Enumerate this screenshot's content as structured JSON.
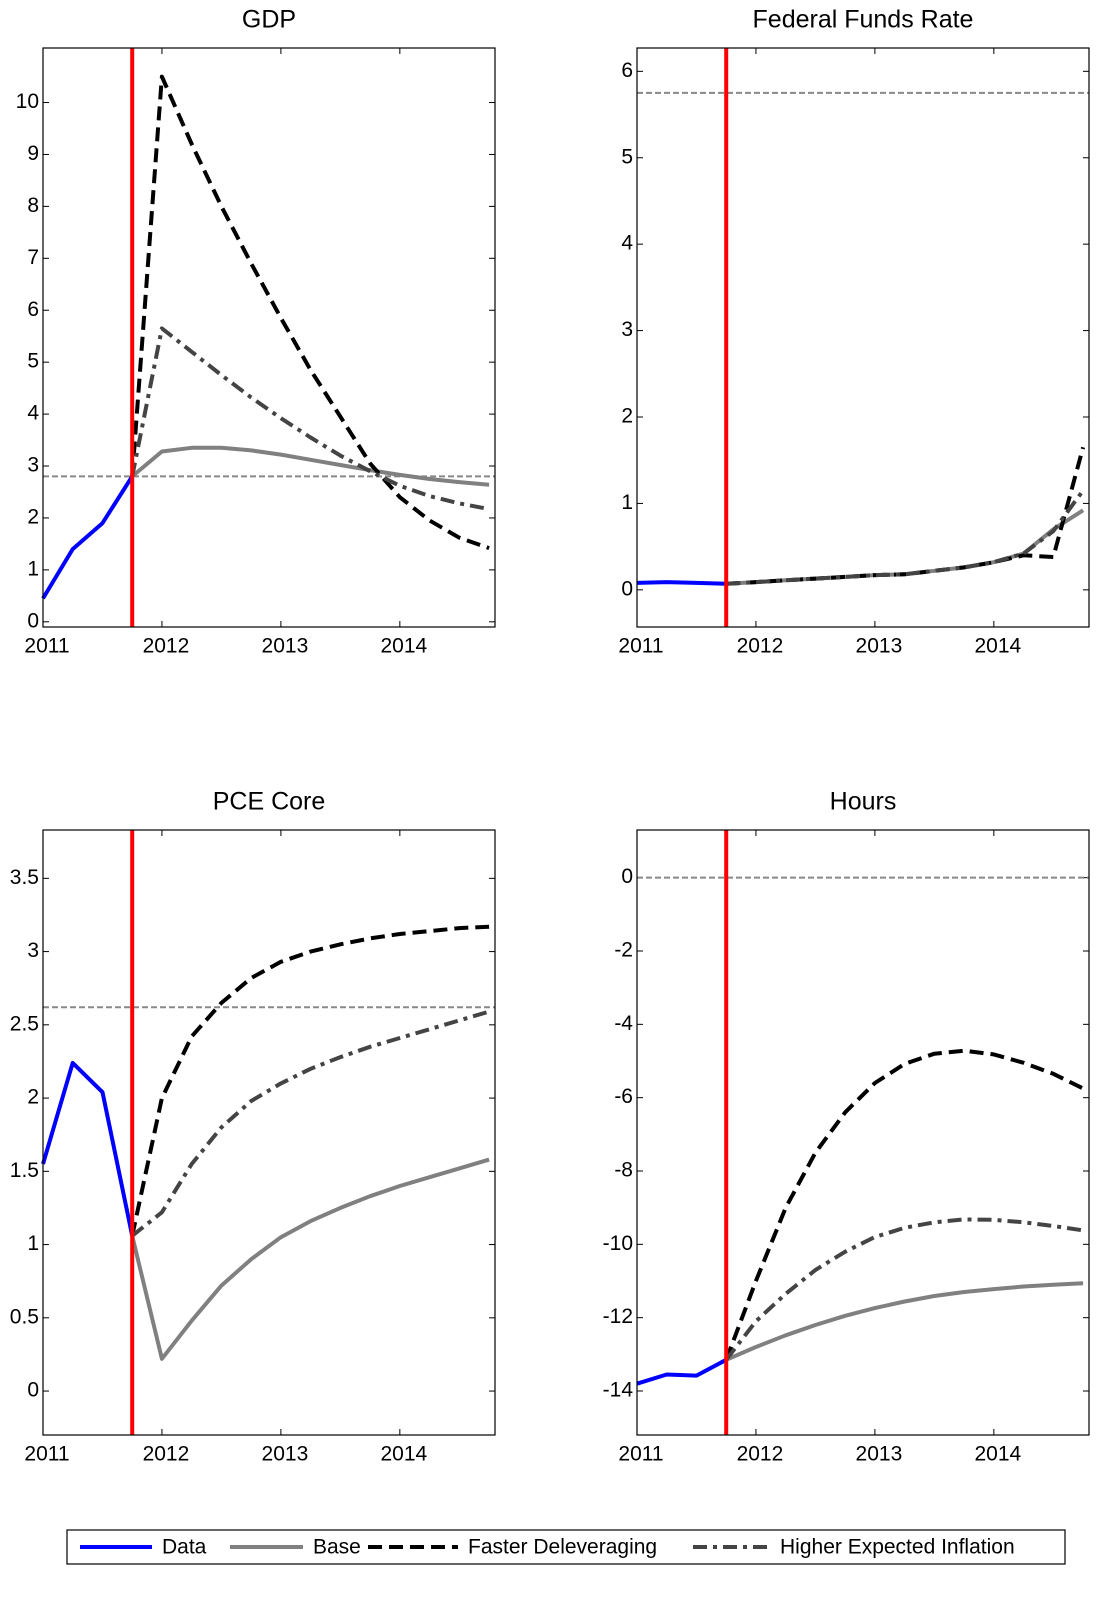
{
  "chart_data": [
    {
      "type": "line",
      "title": "GDP",
      "x": [
        2011,
        2011.25,
        2011.5,
        2011.75,
        2012,
        2012.25,
        2012.5,
        2012.75,
        2013,
        2013.25,
        2013.5,
        2013.75,
        2014,
        2014.25,
        2014.5,
        2014.75
      ],
      "xlim": [
        2011,
        2014.8
      ],
      "xticks": [
        2011,
        2012,
        2013,
        2014
      ],
      "ylim": [
        -0.1,
        11.05
      ],
      "yticks": [
        0,
        1,
        2,
        3,
        4,
        5,
        6,
        7,
        8,
        9,
        10
      ],
      "reference_line": 2.8,
      "event_line": 2011.75,
      "event_color": "#ff0000",
      "series": [
        {
          "name": "Data",
          "color": "#0000ff",
          "dash": "solid",
          "values": [
            0.45,
            1.4,
            1.9,
            2.8,
            null,
            null,
            null,
            null,
            null,
            null,
            null,
            null,
            null,
            null,
            null,
            null
          ]
        },
        {
          "name": "Base",
          "color": "#808080",
          "dash": "solid",
          "values": [
            null,
            null,
            null,
            2.8,
            3.28,
            3.35,
            3.35,
            3.3,
            3.22,
            3.12,
            3.02,
            2.92,
            2.83,
            2.75,
            2.69,
            2.64
          ]
        },
        {
          "name": "Faster Deleveraging",
          "color": "#000000",
          "dash": "dashed",
          "values": [
            null,
            null,
            null,
            2.8,
            10.5,
            9.2,
            8.0,
            6.9,
            5.85,
            4.85,
            3.95,
            3.05,
            2.4,
            1.95,
            1.62,
            1.42
          ]
        },
        {
          "name": "Higher Expected Inflation",
          "color": "#444444",
          "dash": "dashdot",
          "values": [
            null,
            null,
            null,
            2.8,
            5.65,
            5.2,
            4.75,
            4.32,
            3.92,
            3.55,
            3.2,
            2.9,
            2.62,
            2.42,
            2.28,
            2.17
          ]
        }
      ]
    },
    {
      "type": "line",
      "title": "Federal Funds Rate",
      "x": [
        2011,
        2011.25,
        2011.5,
        2011.75,
        2012,
        2012.25,
        2012.5,
        2012.75,
        2013,
        2013.25,
        2013.5,
        2013.75,
        2014,
        2014.25,
        2014.5,
        2014.75
      ],
      "xlim": [
        2011,
        2014.8
      ],
      "xticks": [
        2011,
        2012,
        2013,
        2014
      ],
      "ylim": [
        -0.43,
        6.27
      ],
      "yticks": [
        0,
        1,
        2,
        3,
        4,
        5,
        6
      ],
      "reference_line": 5.75,
      "event_line": 2011.75,
      "event_color": "#ff0000",
      "series": [
        {
          "name": "Data",
          "color": "#0000ff",
          "dash": "solid",
          "values": [
            0.08,
            0.09,
            0.08,
            0.07,
            null,
            null,
            null,
            null,
            null,
            null,
            null,
            null,
            null,
            null,
            null,
            null
          ]
        },
        {
          "name": "Base",
          "color": "#808080",
          "dash": "solid",
          "values": [
            null,
            null,
            null,
            0.07,
            0.09,
            0.11,
            0.13,
            0.15,
            0.17,
            0.18,
            0.22,
            0.26,
            0.32,
            0.42,
            0.7,
            0.92
          ]
        },
        {
          "name": "Faster Deleveraging",
          "color": "#000000",
          "dash": "dashed",
          "values": [
            null,
            null,
            null,
            0.07,
            0.09,
            0.11,
            0.13,
            0.15,
            0.17,
            0.18,
            0.22,
            0.26,
            0.32,
            0.4,
            0.38,
            1.65
          ]
        },
        {
          "name": "Higher Expected Inflation",
          "color": "#444444",
          "dash": "dashdot",
          "values": [
            null,
            null,
            null,
            0.07,
            0.09,
            0.11,
            0.13,
            0.15,
            0.17,
            0.18,
            0.22,
            0.26,
            0.32,
            0.42,
            0.68,
            1.15
          ]
        }
      ]
    },
    {
      "type": "line",
      "title": "PCE Core",
      "x": [
        2011,
        2011.25,
        2011.5,
        2011.75,
        2012,
        2012.25,
        2012.5,
        2012.75,
        2013,
        2013.25,
        2013.5,
        2013.75,
        2014,
        2014.25,
        2014.5,
        2014.75
      ],
      "xlim": [
        2011,
        2014.8
      ],
      "xticks": [
        2011,
        2012,
        2013,
        2014
      ],
      "ylim": [
        -0.3,
        3.83
      ],
      "yticks": [
        0,
        0.5,
        1,
        1.5,
        2,
        2.5,
        3,
        3.5
      ],
      "reference_line": 2.62,
      "event_line": 2011.75,
      "event_color": "#ff0000",
      "series": [
        {
          "name": "Data",
          "color": "#0000ff",
          "dash": "solid",
          "values": [
            1.55,
            2.24,
            2.04,
            1.06,
            null,
            null,
            null,
            null,
            null,
            null,
            null,
            null,
            null,
            null,
            null,
            null
          ]
        },
        {
          "name": "Base",
          "color": "#808080",
          "dash": "solid",
          "values": [
            null,
            null,
            null,
            1.06,
            0.22,
            0.48,
            0.72,
            0.9,
            1.05,
            1.16,
            1.25,
            1.33,
            1.4,
            1.46,
            1.52,
            1.58
          ]
        },
        {
          "name": "Faster Deleveraging",
          "color": "#000000",
          "dash": "dashed",
          "values": [
            null,
            null,
            null,
            1.06,
            2.0,
            2.42,
            2.65,
            2.82,
            2.93,
            3.0,
            3.05,
            3.09,
            3.12,
            3.14,
            3.16,
            3.17
          ]
        },
        {
          "name": "Higher Expected Inflation",
          "color": "#444444",
          "dash": "dashdot",
          "values": [
            null,
            null,
            null,
            1.06,
            1.22,
            1.55,
            1.8,
            1.98,
            2.1,
            2.2,
            2.28,
            2.35,
            2.41,
            2.47,
            2.53,
            2.59
          ]
        }
      ]
    },
    {
      "type": "line",
      "title": "Hours",
      "x": [
        2011,
        2011.25,
        2011.5,
        2011.75,
        2012,
        2012.25,
        2012.5,
        2012.75,
        2013,
        2013.25,
        2013.5,
        2013.75,
        2014,
        2014.25,
        2014.5,
        2014.75
      ],
      "xlim": [
        2011,
        2014.8
      ],
      "xticks": [
        2011,
        2012,
        2013,
        2014
      ],
      "ylim": [
        -15.2,
        1.3
      ],
      "yticks": [
        -14,
        -12,
        -10,
        -8,
        -6,
        -4,
        -2,
        0
      ],
      "reference_line": 0,
      "event_line": 2011.75,
      "event_color": "#ff0000",
      "series": [
        {
          "name": "Data",
          "color": "#0000ff",
          "dash": "solid",
          "values": [
            -13.8,
            -13.55,
            -13.58,
            -13.15,
            null,
            null,
            null,
            null,
            null,
            null,
            null,
            null,
            null,
            null,
            null,
            null
          ]
        },
        {
          "name": "Base",
          "color": "#808080",
          "dash": "solid",
          "values": [
            null,
            null,
            null,
            -13.15,
            -12.8,
            -12.48,
            -12.2,
            -11.95,
            -11.74,
            -11.56,
            -11.41,
            -11.3,
            -11.22,
            -11.15,
            -11.1,
            -11.06
          ]
        },
        {
          "name": "Faster Deleveraging",
          "color": "#000000",
          "dash": "dashed",
          "values": [
            null,
            null,
            null,
            -13.15,
            -11.0,
            -9.0,
            -7.5,
            -6.4,
            -5.6,
            -5.08,
            -4.8,
            -4.72,
            -4.82,
            -5.05,
            -5.35,
            -5.75
          ]
        },
        {
          "name": "Higher Expected Inflation",
          "color": "#444444",
          "dash": "dashdot",
          "values": [
            null,
            null,
            null,
            -13.15,
            -12.1,
            -11.35,
            -10.7,
            -10.2,
            -9.8,
            -9.55,
            -9.4,
            -9.32,
            -9.33,
            -9.4,
            -9.5,
            -9.62
          ]
        }
      ]
    }
  ]
}
